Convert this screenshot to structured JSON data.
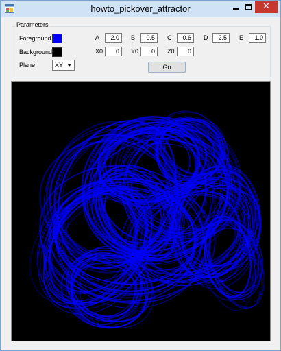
{
  "window": {
    "title": "howto_pickover_attractor",
    "close_glyph": "✕"
  },
  "parameters": {
    "group_label": "Parameters",
    "foreground_label": "Foreground",
    "foreground_color": "#0000ff",
    "background_label": "Background",
    "background_color": "#000000",
    "plane_label": "Plane",
    "plane_value": "XY",
    "a_label": "A",
    "a_value": "2.0",
    "b_label": "B",
    "b_value": "0.5",
    "c_label": "C",
    "c_value": "-0.6",
    "d_label": "D",
    "d_value": "-2.5",
    "e_label": "E",
    "e_value": "1.0",
    "x0_label": "X0",
    "x0_value": "0",
    "y0_label": "Y0",
    "y0_value": "0",
    "z0_label": "Z0",
    "z0_value": "0",
    "go_label": "Go"
  },
  "icons": {
    "app": "app-icon",
    "minimize": "minimize-icon",
    "maximize": "maximize-icon",
    "close": "close-icon",
    "dropdown": "chevron-down-icon"
  }
}
